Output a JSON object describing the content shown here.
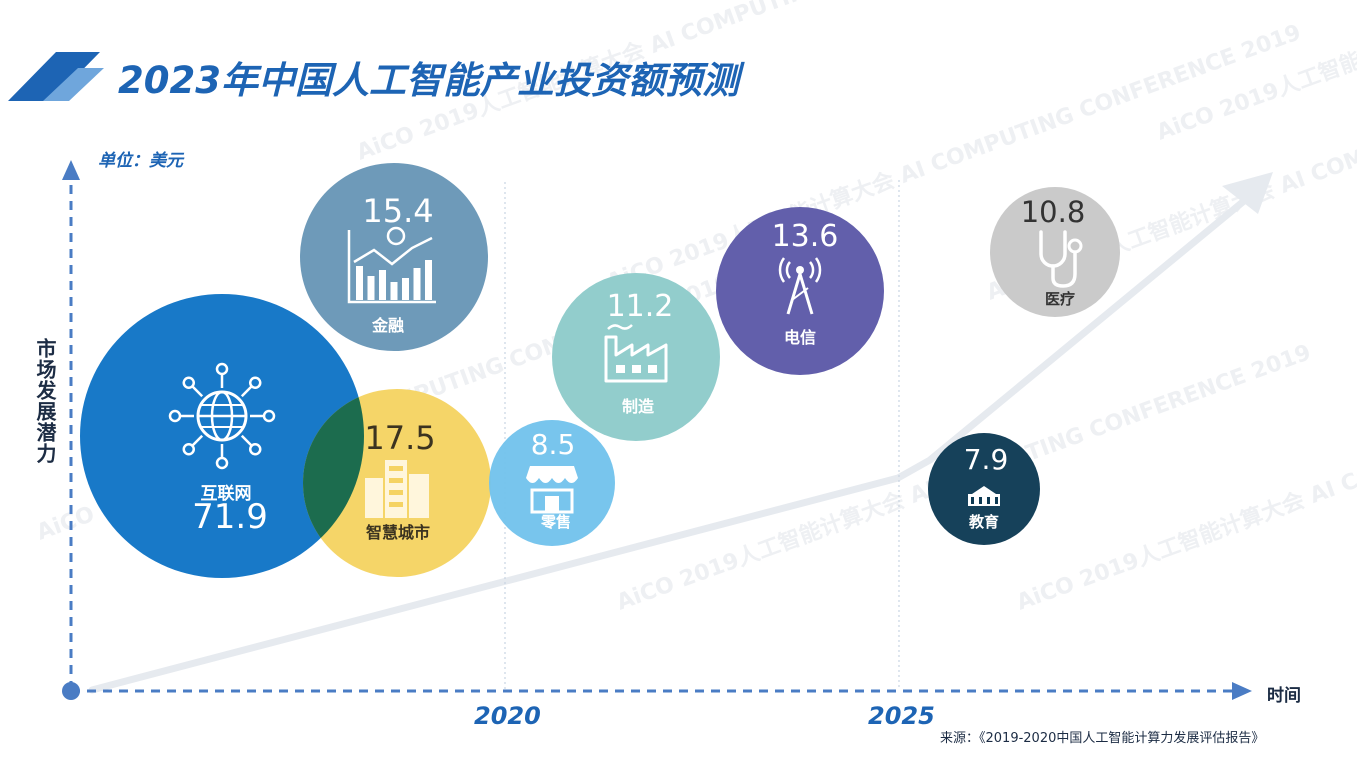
{
  "title": "2023年中国人工智能产业投资额预测",
  "unit_label": "单位：美元",
  "source": "来源：《2019-2020中国人工智能计算力发展评估报告》",
  "watermark": "AiCO 2019人工智能计算大会 AI COMPUTING CONFERENCE 2019",
  "colors": {
    "title": "#1d64b4",
    "axis": "#4a7cc4",
    "arrow": "#e6eaef"
  },
  "chart_data": {
    "type": "bubble",
    "title": "2023年中国人工智能产业投资额预测",
    "unit": "单位：美元",
    "xlabel": "时间",
    "ylabel": "市场发展潜力",
    "periods": [
      "2020",
      "2025"
    ],
    "bubbles": [
      {
        "key": "internet",
        "name": "互联网",
        "value": 71.9,
        "value_str": "71.9",
        "color": "#1879c8",
        "icon": "globe-network-icon"
      },
      {
        "key": "finance",
        "name": "金融",
        "value": 15.4,
        "value_str": "15.4",
        "color": "#6896b6",
        "icon": "bar-chart-icon"
      },
      {
        "key": "smartcity",
        "name": "智慧城市",
        "value": 17.5,
        "value_str": "17.5",
        "color": "#f5d362",
        "icon": "city-buildings-icon"
      },
      {
        "key": "retail",
        "name": "零售",
        "value": 8.5,
        "value_str": "8.5",
        "color": "#73c3ec",
        "icon": "storefront-icon"
      },
      {
        "key": "manufacturing",
        "name": "制造",
        "value": 11.2,
        "value_str": "11.2",
        "color": "#8ecbca",
        "icon": "factory-icon"
      },
      {
        "key": "telecom",
        "name": "电信",
        "value": 13.6,
        "value_str": "13.6",
        "color": "#5c58a8",
        "icon": "signal-tower-icon"
      },
      {
        "key": "medical",
        "name": "医疗",
        "value": 10.8,
        "value_str": "10.8",
        "color": "#c8c8c8",
        "icon": "stethoscope-icon"
      },
      {
        "key": "education",
        "name": "教育",
        "value": 7.9,
        "value_str": "7.9",
        "color": "#0c3953",
        "icon": "school-icon"
      }
    ]
  }
}
